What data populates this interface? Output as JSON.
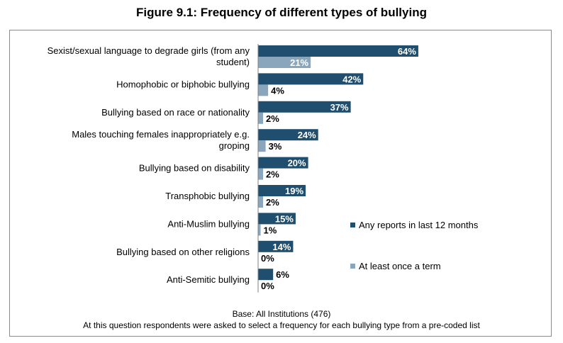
{
  "title": "Figure 9.1: Frequency of different types of bullying",
  "notes": {
    "base": "Base:  All Institutions (476)",
    "question": "At this question respondents were asked to select a frequency for each bullying type from a pre-coded list"
  },
  "chart_data": {
    "type": "bar",
    "orientation": "horizontal",
    "categories": [
      [
        "Sexist/sexual language to degrade girls (from any",
        "student)"
      ],
      [
        "Homophobic or biphobic bullying"
      ],
      [
        "Bullying based on race or nationality"
      ],
      [
        "Males touching females inappropriately e.g.",
        "groping"
      ],
      [
        "Bullying based on disability"
      ],
      [
        "Transphobic bullying"
      ],
      [
        "Anti-Muslim bullying"
      ],
      [
        "Bullying based on other religions"
      ],
      [
        "Anti-Semitic bullying"
      ]
    ],
    "series": [
      {
        "name": "Any reports in last 12 months",
        "values": [
          64,
          42,
          37,
          24,
          20,
          19,
          15,
          14,
          6
        ],
        "color": "#1f4e6e"
      },
      {
        "name": "At least once a term",
        "values": [
          21,
          4,
          2,
          3,
          2,
          2,
          1,
          0,
          0
        ],
        "color": "#8aa6bd"
      }
    ],
    "value_suffix": "%",
    "xlim": [
      0,
      100
    ],
    "legend_position": "right",
    "grid": false
  }
}
